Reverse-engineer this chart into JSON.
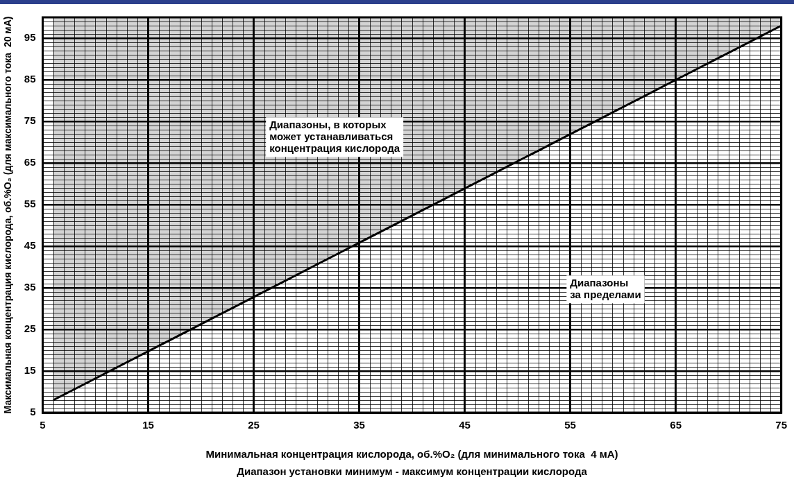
{
  "chart_data": {
    "type": "line",
    "xlabel": "Минимальная концентрация кислорода, об.%O₂ (для минимального тока  4 мА)",
    "ylabel": "Максимальная концентрация кислорода, об.%O₂ (для максимального тока  20 мА)",
    "annotations": [
      "Диапазоны, в которых\nможет устанавливаться\nконцентрация кислорода",
      "Диапазоны\nза пределами",
      "Диапазон установки минимум - максимум концентрации кислорода"
    ],
    "series": [
      {
        "color": "#000000",
        "x": [
          6,
          75
        ],
        "values": [
          8,
          98
        ],
        "lower": [
          8,
          98
        ],
        "upper": [
          100,
          100
        ]
      }
    ],
    "xlim": [
      5,
      75
    ],
    "xticks": [
      5,
      15,
      25,
      35,
      45,
      55,
      65,
      75
    ],
    "ylim": [
      5,
      100
    ],
    "yticks": [
      5,
      15,
      25,
      35,
      45,
      55,
      65,
      75,
      85,
      95
    ],
    "grid": true,
    "legend": false,
    "marker": "none",
    "line_style": "solid"
  }
}
